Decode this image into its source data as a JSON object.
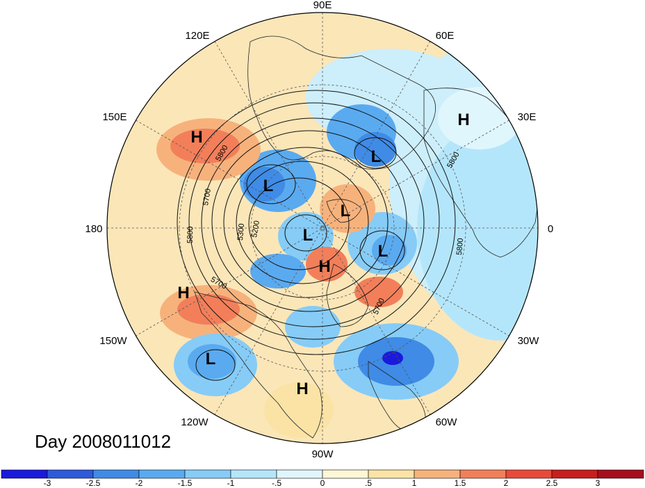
{
  "title": "Day 2008011012",
  "longitude_labels": {
    "n90e": "90E",
    "n120e": "120E",
    "n60e": "60E",
    "n150e": "150E",
    "n30e": "30E",
    "n180": "180",
    "n0": "0",
    "n150w": "150W",
    "n30w": "30W",
    "n120w": "120W",
    "n60w": "60W",
    "n90w": "90W"
  },
  "contour_labels": [
    "5800",
    "5700",
    "5300",
    "5200",
    "5800",
    "5700",
    "5800",
    "5800",
    "5700"
  ],
  "pressure_centers": [
    {
      "type": "H",
      "label": "H"
    },
    {
      "type": "L",
      "label": "L"
    },
    {
      "type": "L",
      "label": "L"
    },
    {
      "type": "H",
      "label": "H"
    },
    {
      "type": "L",
      "label": "L"
    },
    {
      "type": "L",
      "label": "L"
    },
    {
      "type": "L",
      "label": "L"
    },
    {
      "type": "H",
      "label": "H"
    },
    {
      "type": "H",
      "label": "H"
    },
    {
      "type": "L",
      "label": "L"
    },
    {
      "type": "H",
      "label": "H"
    }
  ],
  "colorbar": {
    "ticks": [
      "-3",
      "-2.5",
      "-2",
      "-1.5",
      "-1",
      "-.5",
      "0",
      ".5",
      "1",
      "1.5",
      "2",
      "2.5",
      "3"
    ],
    "colors": [
      "#1a1adb",
      "#2e5bdb",
      "#3f8be6",
      "#5aaaf0",
      "#86ccf7",
      "#b4e6fb",
      "#e0f6fd",
      "#fdf7d6",
      "#fbe3a6",
      "#f7b27c",
      "#f27f5a",
      "#e84a3a",
      "#c81e1e",
      "#a50f1e"
    ]
  }
}
